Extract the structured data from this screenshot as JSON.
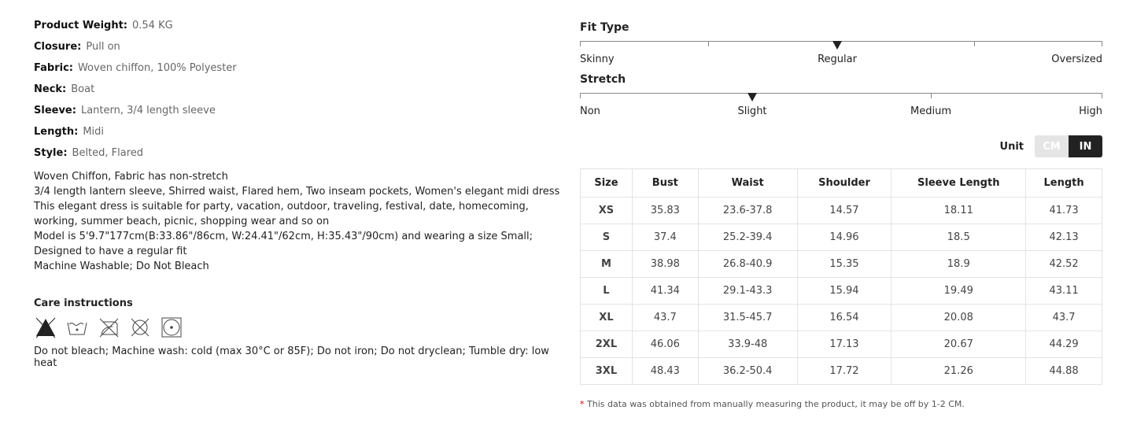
{
  "attributes": [
    {
      "label": "Product Weight:",
      "value": "0.54 KG"
    },
    {
      "label": "Closure:",
      "value": "Pull on"
    },
    {
      "label": "Fabric:",
      "value": "Woven chiffon, 100% Polyester"
    },
    {
      "label": "Neck:",
      "value": "Boat"
    },
    {
      "label": "Sleeve:",
      "value": "Lantern, 3/4 length sleeve"
    },
    {
      "label": "Length:",
      "value": "Midi"
    },
    {
      "label": "Style:",
      "value": "Belted, Flared"
    }
  ],
  "description": [
    "Woven Chiffon, Fabric has non-stretch",
    "3/4 length lantern sleeve, Shirred waist, Flared hem, Two inseam pockets, Women's elegant midi dress",
    "This elegant dress is suitable for party, vacation, outdoor, traveling, festival, date, homecoming, working, summer beach, picnic, shopping wear and so on",
    "Model is 5'9.7\"177cm(B:33.86\"/86cm, W:24.41\"/62cm, H:35.43\"/90cm) and wearing a size Small; Designed to have a regular fit",
    "Machine Washable; Do Not Bleach"
  ],
  "care": {
    "title": "Care instructions",
    "icons": [
      "no-bleach-icon",
      "machine-wash-cold-icon",
      "do-not-iron-icon",
      "do-not-dryclean-icon",
      "tumble-dry-low-icon"
    ],
    "text": "Do not bleach; Machine wash: cold (max 30°C or 85F); Do not iron; Do not dryclean; Tumble dry: low heat"
  },
  "fit_type": {
    "title": "Fit Type",
    "labels": [
      "Skinny",
      "Regular",
      "Oversized"
    ],
    "level": 0.5
  },
  "stretch": {
    "title": "Stretch",
    "labels": [
      "Non",
      "Slight",
      "Medium",
      "High"
    ],
    "level": 0.33
  },
  "unit": {
    "label": "Unit",
    "options": [
      "CM",
      "IN"
    ],
    "selected": "IN"
  },
  "size_table": {
    "headers": [
      "Size",
      "Bust",
      "Waist",
      "Shoulder",
      "Sleeve Length",
      "Length"
    ],
    "rows": [
      [
        "XS",
        "35.83",
        "23.6-37.8",
        "14.57",
        "18.11",
        "41.73"
      ],
      [
        "S",
        "37.4",
        "25.2-39.4",
        "14.96",
        "18.5",
        "42.13"
      ],
      [
        "M",
        "38.98",
        "26.8-40.9",
        "15.35",
        "18.9",
        "42.52"
      ],
      [
        "L",
        "41.34",
        "29.1-43.3",
        "15.94",
        "19.49",
        "43.11"
      ],
      [
        "XL",
        "43.7",
        "31.5-45.7",
        "16.54",
        "20.08",
        "43.7"
      ],
      [
        "2XL",
        "46.06",
        "33.9-48",
        "17.13",
        "20.67",
        "44.29"
      ],
      [
        "3XL",
        "48.43",
        "36.2-50.4",
        "17.72",
        "21.26",
        "44.88"
      ]
    ]
  },
  "note": {
    "asterisk": "*",
    "text": "This data was obtained from manually measuring the product, it may be off by 1-2 CM."
  }
}
